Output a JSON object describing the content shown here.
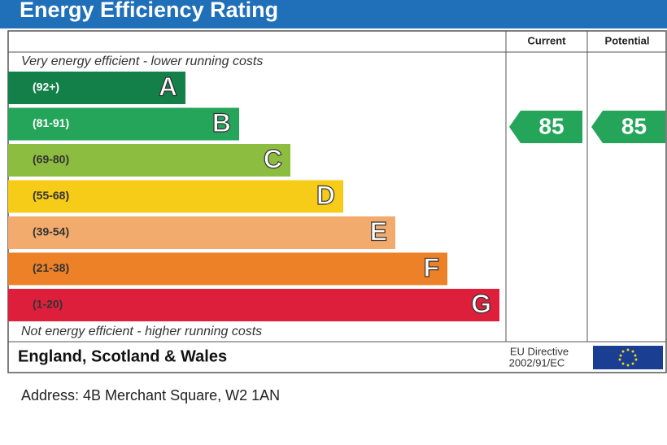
{
  "header": {
    "title": "Energy Efficiency Rating"
  },
  "columns": {
    "current": "Current",
    "potential": "Potential"
  },
  "top_note": "Very energy efficient - lower running costs",
  "bands": [
    {
      "range": "(92+)",
      "letter": "A",
      "color": "#138049"
    },
    {
      "range": "(81-91)",
      "letter": "B",
      "color": "#25a55a"
    },
    {
      "range": "(69-80)",
      "letter": "C",
      "color": "#8dbd40"
    },
    {
      "range": "(55-68)",
      "letter": "D",
      "color": "#f6cc18"
    },
    {
      "range": "(39-54)",
      "letter": "E",
      "color": "#f2ab6c"
    },
    {
      "range": "(21-38)",
      "letter": "F",
      "color": "#ec8128"
    },
    {
      "range": "(1-20)",
      "letter": "G",
      "color": "#de1f3c"
    }
  ],
  "bottom_note": "Not energy efficient - higher running costs",
  "ratings": {
    "current": {
      "value": 85,
      "color": "#25a55a"
    },
    "potential": {
      "value": 85,
      "color": "#25a55a"
    }
  },
  "footer": {
    "region": "England, Scotland & Wales",
    "directive": [
      "EU Directive",
      "2002/91/EC"
    ]
  },
  "address": "Address: 4B Merchant Square, W2 1AN"
}
